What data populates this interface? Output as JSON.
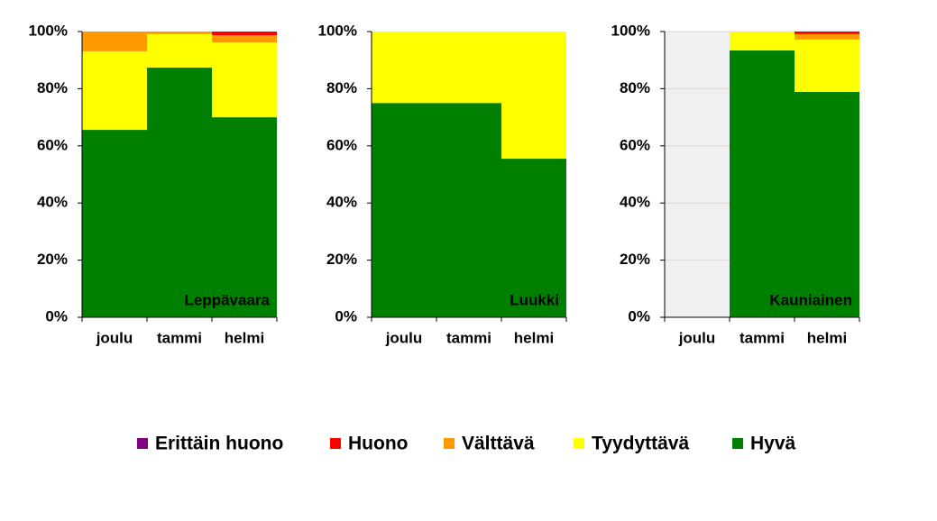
{
  "chart_data": [
    {
      "type": "stacked_bar",
      "label": "Leppävaara",
      "categories": [
        "joulu",
        "tammi",
        "helmi"
      ],
      "ylim": [
        0,
        100
      ],
      "yticks": [
        {
          "value": 0,
          "label": "0%"
        },
        {
          "value": 20,
          "label": "20%"
        },
        {
          "value": 40,
          "label": "40%"
        },
        {
          "value": 60,
          "label": "60%"
        },
        {
          "value": 80,
          "label": "80%"
        },
        {
          "value": 100,
          "label": "100%"
        }
      ],
      "grid": false,
      "series": [
        {
          "name": "Hyvä",
          "color": "#008000",
          "values": [
            65.6,
            87.4,
            70
          ]
        },
        {
          "name": "Tyydyttävä",
          "color": "#ffff00",
          "values": [
            27.5,
            11.7,
            26.2
          ]
        },
        {
          "name": "Välttävä",
          "color": "#ff9900",
          "values": [
            6.9,
            0.9,
            2.5
          ]
        },
        {
          "name": "Huono",
          "color": "#ff0000",
          "values": [
            0,
            0,
            1.3
          ]
        },
        {
          "name": "Erittäin huono",
          "color": "#800080",
          "values": [
            0,
            0,
            0
          ]
        }
      ]
    },
    {
      "type": "stacked_bar",
      "label": "Luukki",
      "categories": [
        "joulu",
        "tammi",
        "helmi"
      ],
      "ylim": [
        0,
        100
      ],
      "yticks": [
        {
          "value": 0,
          "label": "0%"
        },
        {
          "value": 20,
          "label": "20%"
        },
        {
          "value": 40,
          "label": "40%"
        },
        {
          "value": 60,
          "label": "60%"
        },
        {
          "value": 80,
          "label": "80%"
        },
        {
          "value": 100,
          "label": "100%"
        }
      ],
      "grid": false,
      "series": [
        {
          "name": "Hyvä",
          "color": "#008000",
          "values": [
            75,
            75,
            55.5
          ]
        },
        {
          "name": "Tyydyttävä",
          "color": "#ffff00",
          "values": [
            25,
            25,
            44.5
          ]
        },
        {
          "name": "Välttävä",
          "color": "#ff9900",
          "values": [
            0,
            0,
            0
          ]
        },
        {
          "name": "Huono",
          "color": "#ff0000",
          "values": [
            0,
            0,
            0
          ]
        },
        {
          "name": "Erittäin huono",
          "color": "#800080",
          "values": [
            0,
            0,
            0
          ]
        }
      ]
    },
    {
      "type": "stacked_bar",
      "label": "Kauniainen",
      "categories": [
        "joulu",
        "tammi",
        "helmi"
      ],
      "ylim": [
        0,
        100
      ],
      "yticks": [
        {
          "value": 0,
          "label": "0%"
        },
        {
          "value": 20,
          "label": "20%"
        },
        {
          "value": 40,
          "label": "40%"
        },
        {
          "value": 60,
          "label": "60%"
        },
        {
          "value": 80,
          "label": "80%"
        },
        {
          "value": 100,
          "label": "100%"
        }
      ],
      "grid": true,
      "background": "#f0f0f0",
      "series": [
        {
          "name": "Hyvä",
          "color": "#008000",
          "values": [
            null,
            93.4,
            78.9
          ]
        },
        {
          "name": "Tyydyttävä",
          "color": "#ffff00",
          "values": [
            null,
            6.6,
            18.3
          ]
        },
        {
          "name": "Välttävä",
          "color": "#ff9900",
          "values": [
            null,
            0,
            1.9
          ]
        },
        {
          "name": "Huono",
          "color": "#ff0000",
          "values": [
            null,
            0,
            0.9
          ]
        },
        {
          "name": "Erittäin huono",
          "color": "#800080",
          "values": [
            null,
            0,
            0
          ]
        }
      ]
    }
  ]
}
